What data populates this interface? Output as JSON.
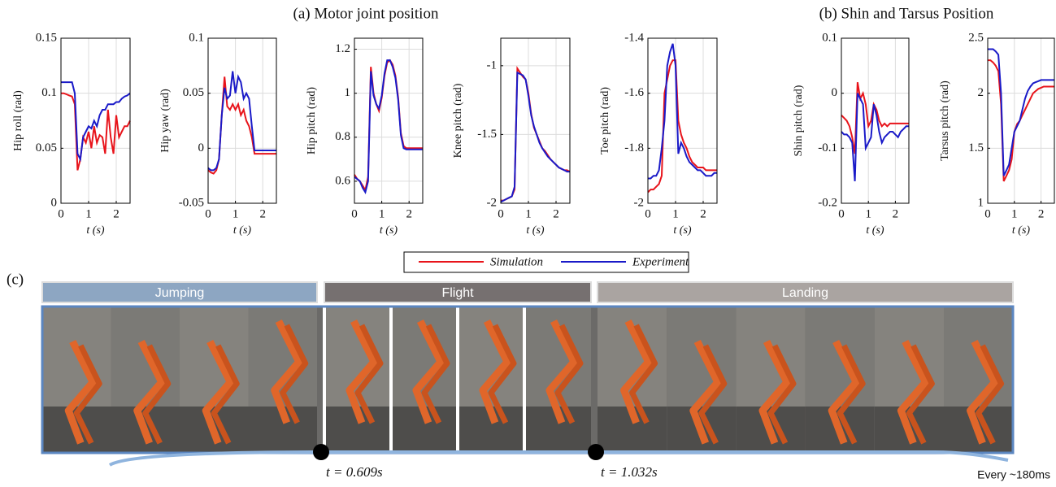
{
  "chart_data": [
    {
      "type": "line",
      "y_label": "Hip roll (rad)",
      "x_label": "t (s)",
      "x": [
        0,
        0.1,
        0.2,
        0.3,
        0.4,
        0.5,
        0.6,
        0.7,
        0.8,
        0.9,
        1,
        1.1,
        1.2,
        1.3,
        1.4,
        1.5,
        1.6,
        1.7,
        1.8,
        1.9,
        2,
        2.1,
        2.2,
        2.3,
        2.4,
        2.5
      ],
      "series": [
        {
          "name": "Simulation",
          "color": "#e8141b",
          "values": [
            0.1,
            0.1,
            0.099,
            0.098,
            0.097,
            0.09,
            0.03,
            0.04,
            0.06,
            0.055,
            0.065,
            0.05,
            0.07,
            0.055,
            0.062,
            0.06,
            0.045,
            0.085,
            0.06,
            0.045,
            0.08,
            0.06,
            0.065,
            0.07,
            0.07,
            0.075
          ]
        },
        {
          "name": "Experiment",
          "color": "#1a1ac8",
          "values": [
            0.11,
            0.11,
            0.11,
            0.11,
            0.11,
            0.1,
            0.045,
            0.04,
            0.06,
            0.065,
            0.07,
            0.068,
            0.075,
            0.07,
            0.08,
            0.085,
            0.085,
            0.09,
            0.09,
            0.09,
            0.092,
            0.092,
            0.095,
            0.097,
            0.098,
            0.1
          ]
        }
      ],
      "xlim": [
        0,
        2.5
      ],
      "xticks": [
        0,
        1,
        2
      ],
      "ylim": [
        0,
        0.15
      ],
      "yticks": [
        0,
        0.05,
        0.1,
        0.15
      ],
      "grid": true
    },
    {
      "type": "line",
      "y_label": "Hip yaw (rad)",
      "x_label": "t (s)",
      "x": [
        0,
        0.1,
        0.2,
        0.3,
        0.4,
        0.5,
        0.6,
        0.7,
        0.8,
        0.9,
        1,
        1.1,
        1.2,
        1.3,
        1.4,
        1.5,
        1.6,
        1.7,
        1.8,
        1.9,
        2,
        2.1,
        2.2,
        2.3,
        2.4,
        2.5
      ],
      "series": [
        {
          "color": "#e8141b",
          "values": [
            -0.02,
            -0.022,
            -0.023,
            -0.02,
            -0.01,
            0.03,
            0.065,
            0.038,
            0.035,
            0.04,
            0.035,
            0.04,
            0.03,
            0.035,
            0.025,
            0.02,
            0.01,
            -0.005,
            -0.005,
            -0.005,
            -0.005,
            -0.005,
            -0.005,
            -0.005,
            -0.005,
            -0.005
          ]
        },
        {
          "color": "#1a1ac8",
          "values": [
            -0.018,
            -0.02,
            -0.02,
            -0.018,
            -0.01,
            0.03,
            0.055,
            0.045,
            0.048,
            0.07,
            0.05,
            0.065,
            0.06,
            0.045,
            0.05,
            0.045,
            0.02,
            -0.002,
            -0.002,
            -0.002,
            -0.002,
            -0.002,
            -0.002,
            -0.002,
            -0.002,
            -0.002
          ]
        }
      ],
      "xlim": [
        0,
        2.5
      ],
      "xticks": [
        0,
        1,
        2
      ],
      "ylim": [
        -0.05,
        0.1
      ],
      "yticks": [
        -0.05,
        0,
        0.05,
        0.1
      ],
      "grid": true
    },
    {
      "type": "line",
      "y_label": "Hip pitch (rad)",
      "x_label": "t (s)",
      "x": [
        0,
        0.1,
        0.2,
        0.3,
        0.4,
        0.5,
        0.6,
        0.7,
        0.8,
        0.9,
        1,
        1.1,
        1.2,
        1.3,
        1.4,
        1.5,
        1.6,
        1.7,
        1.8,
        1.9,
        2,
        2.1,
        2.2,
        2.3,
        2.4,
        2.5
      ],
      "series": [
        {
          "color": "#e8141b",
          "values": [
            0.63,
            0.61,
            0.6,
            0.58,
            0.56,
            0.62,
            1.12,
            1.0,
            0.95,
            0.92,
            0.98,
            1.08,
            1.14,
            1.15,
            1.13,
            1.08,
            0.98,
            0.82,
            0.76,
            0.75,
            0.75,
            0.75,
            0.75,
            0.75,
            0.75,
            0.75
          ]
        },
        {
          "color": "#1a1ac8",
          "values": [
            0.62,
            0.61,
            0.6,
            0.57,
            0.55,
            0.6,
            1.1,
            0.99,
            0.95,
            0.93,
            0.99,
            1.09,
            1.15,
            1.15,
            1.12,
            1.07,
            0.97,
            0.81,
            0.75,
            0.745,
            0.745,
            0.745,
            0.745,
            0.745,
            0.745,
            0.745
          ]
        }
      ],
      "xlim": [
        0,
        2.5
      ],
      "xticks": [
        0,
        1,
        2
      ],
      "ylim": [
        0.5,
        1.25
      ],
      "yticks": [
        0.6,
        0.8,
        1,
        1.2
      ],
      "grid": true
    },
    {
      "type": "line",
      "y_label": "Knee pitch (rad)",
      "x_label": "t (s)",
      "x": [
        0,
        0.1,
        0.2,
        0.3,
        0.4,
        0.5,
        0.6,
        0.7,
        0.8,
        0.9,
        1,
        1.1,
        1.2,
        1.3,
        1.4,
        1.5,
        1.6,
        1.7,
        1.8,
        1.9,
        2,
        2.1,
        2.2,
        2.3,
        2.4,
        2.5
      ],
      "series": [
        {
          "color": "#e8141b",
          "values": [
            -1.98,
            -1.98,
            -1.97,
            -1.96,
            -1.95,
            -1.9,
            -1.02,
            -1.05,
            -1.08,
            -1.1,
            -1.2,
            -1.35,
            -1.45,
            -1.5,
            -1.55,
            -1.6,
            -1.62,
            -1.65,
            -1.68,
            -1.7,
            -1.72,
            -1.74,
            -1.75,
            -1.76,
            -1.76,
            -1.77
          ]
        },
        {
          "color": "#1a1ac8",
          "values": [
            -1.99,
            -1.98,
            -1.97,
            -1.96,
            -1.95,
            -1.88,
            -1.05,
            -1.06,
            -1.07,
            -1.1,
            -1.22,
            -1.36,
            -1.44,
            -1.5,
            -1.56,
            -1.6,
            -1.63,
            -1.66,
            -1.68,
            -1.7,
            -1.72,
            -1.74,
            -1.75,
            -1.76,
            -1.77,
            -1.77
          ]
        }
      ],
      "xlim": [
        0,
        2.5
      ],
      "xticks": [
        0,
        1,
        2
      ],
      "ylim": [
        -2,
        -0.8
      ],
      "yticks": [
        -2,
        -1.5,
        -1
      ],
      "grid": true
    },
    {
      "type": "line",
      "y_label": "Toe pitch (rad)",
      "x_label": "t (s)",
      "x": [
        0,
        0.1,
        0.2,
        0.3,
        0.4,
        0.5,
        0.6,
        0.7,
        0.8,
        0.9,
        1,
        1.1,
        1.2,
        1.3,
        1.4,
        1.5,
        1.6,
        1.7,
        1.8,
        1.9,
        2,
        2.1,
        2.2,
        2.3,
        2.4,
        2.5
      ],
      "series": [
        {
          "color": "#e8141b",
          "values": [
            -1.96,
            -1.95,
            -1.95,
            -1.94,
            -1.93,
            -1.9,
            -1.6,
            -1.55,
            -1.5,
            -1.48,
            -1.48,
            -1.7,
            -1.75,
            -1.78,
            -1.8,
            -1.83,
            -1.85,
            -1.86,
            -1.87,
            -1.87,
            -1.87,
            -1.88,
            -1.88,
            -1.88,
            -1.88,
            -1.88
          ]
        },
        {
          "color": "#1a1ac8",
          "values": [
            -1.91,
            -1.91,
            -1.9,
            -1.9,
            -1.88,
            -1.8,
            -1.7,
            -1.5,
            -1.45,
            -1.42,
            -1.5,
            -1.82,
            -1.78,
            -1.8,
            -1.83,
            -1.85,
            -1.86,
            -1.87,
            -1.88,
            -1.88,
            -1.89,
            -1.9,
            -1.9,
            -1.9,
            -1.89,
            -1.89
          ]
        }
      ],
      "xlim": [
        0,
        2.5
      ],
      "xticks": [
        0,
        1,
        2
      ],
      "ylim": [
        -2,
        -1.4
      ],
      "yticks": [
        -2,
        -1.8,
        -1.6,
        -1.4
      ],
      "grid": true
    },
    {
      "type": "line",
      "y_label": "Shin pitch (rad)",
      "x_label": "t (s)",
      "x": [
        0,
        0.1,
        0.2,
        0.3,
        0.4,
        0.5,
        0.6,
        0.7,
        0.8,
        0.9,
        1,
        1.1,
        1.2,
        1.3,
        1.4,
        1.5,
        1.6,
        1.7,
        1.8,
        1.9,
        2,
        2.1,
        2.2,
        2.3,
        2.4,
        2.5
      ],
      "series": [
        {
          "color": "#e8141b",
          "values": [
            -0.04,
            -0.045,
            -0.05,
            -0.06,
            -0.08,
            -0.11,
            0.02,
            -0.01,
            0.0,
            -0.02,
            -0.06,
            -0.05,
            -0.02,
            -0.03,
            -0.05,
            -0.06,
            -0.055,
            -0.06,
            -0.055,
            -0.055,
            -0.055,
            -0.055,
            -0.055,
            -0.055,
            -0.055,
            -0.055
          ]
        },
        {
          "color": "#1a1ac8",
          "values": [
            -0.07,
            -0.075,
            -0.075,
            -0.08,
            -0.09,
            -0.16,
            0.0,
            -0.01,
            -0.02,
            -0.1,
            -0.09,
            -0.08,
            -0.02,
            -0.04,
            -0.07,
            -0.09,
            -0.08,
            -0.075,
            -0.07,
            -0.07,
            -0.075,
            -0.08,
            -0.07,
            -0.065,
            -0.06,
            -0.06
          ]
        }
      ],
      "xlim": [
        0,
        2.5
      ],
      "xticks": [
        0,
        1,
        2
      ],
      "ylim": [
        -0.2,
        0.1
      ],
      "yticks": [
        -0.2,
        -0.1,
        0,
        0.1
      ],
      "grid": true
    },
    {
      "type": "line",
      "y_label": "Tarsus pitch (rad)",
      "x_label": "t (s)",
      "x": [
        0,
        0.1,
        0.2,
        0.3,
        0.4,
        0.5,
        0.6,
        0.7,
        0.8,
        0.9,
        1,
        1.1,
        1.2,
        1.3,
        1.4,
        1.5,
        1.6,
        1.7,
        1.8,
        1.9,
        2,
        2.1,
        2.2,
        2.3,
        2.4,
        2.5
      ],
      "series": [
        {
          "color": "#e8141b",
          "values": [
            2.3,
            2.3,
            2.28,
            2.25,
            2.2,
            1.9,
            1.2,
            1.25,
            1.3,
            1.4,
            1.65,
            1.72,
            1.75,
            1.8,
            1.85,
            1.9,
            1.95,
            2.0,
            2.02,
            2.04,
            2.05,
            2.06,
            2.06,
            2.06,
            2.06,
            2.06
          ]
        },
        {
          "color": "#1a1ac8",
          "values": [
            2.4,
            2.4,
            2.4,
            2.38,
            2.35,
            2.0,
            1.25,
            1.3,
            1.35,
            1.5,
            1.65,
            1.7,
            1.75,
            1.85,
            1.95,
            2.02,
            2.06,
            2.09,
            2.1,
            2.11,
            2.12,
            2.12,
            2.12,
            2.12,
            2.12,
            2.12
          ]
        }
      ],
      "xlim": [
        0,
        2.5
      ],
      "xticks": [
        0,
        1,
        2
      ],
      "ylim": [
        1,
        2.5
      ],
      "yticks": [
        1,
        1.5,
        2,
        2.5
      ],
      "grid": true
    }
  ],
  "figure": {
    "panel_a_title": "(a)  Motor joint position",
    "panel_b_title": "(b)  Shin and Tarsus Position",
    "panel_c_label": "(c)",
    "phases": [
      "Jumping",
      "Flight",
      "Landing"
    ],
    "timestamps": [
      "t = 0.609s",
      "t = 1.032s"
    ],
    "interval_note": "Every ~180ms"
  }
}
